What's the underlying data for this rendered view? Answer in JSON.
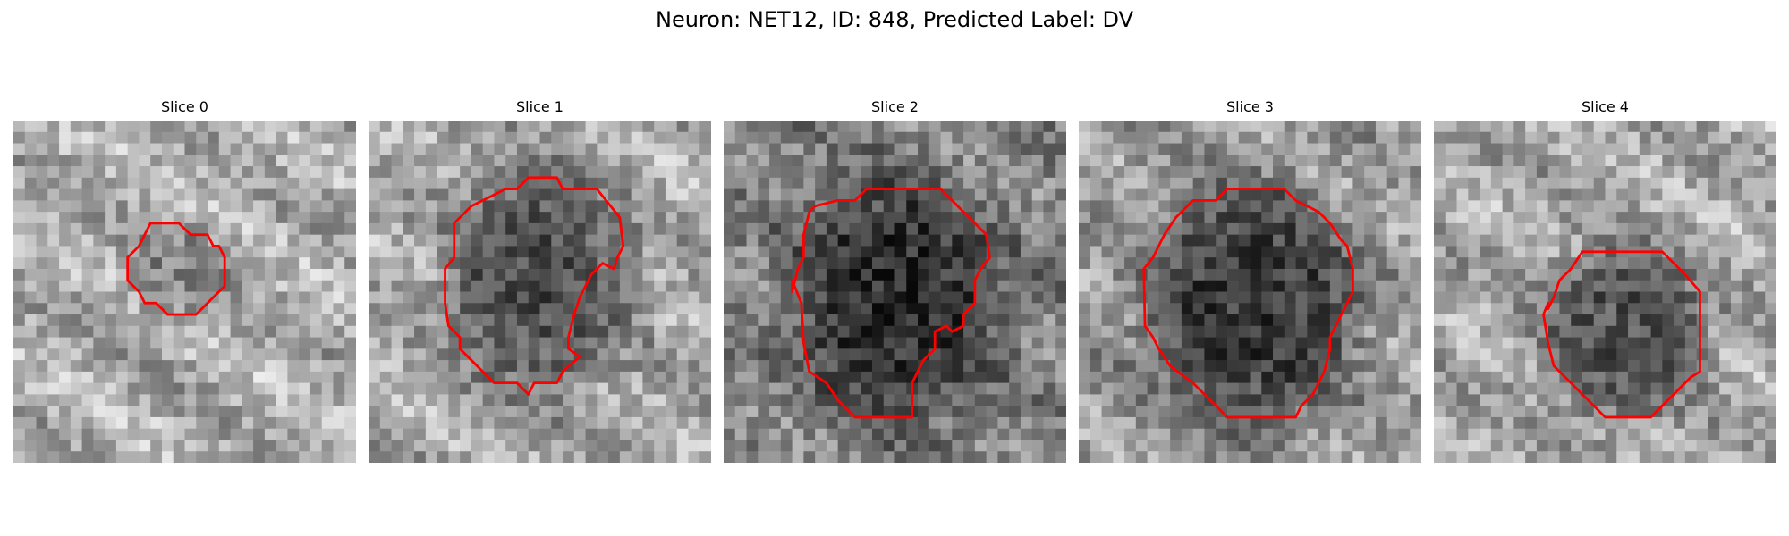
{
  "figure": {
    "title": "Neuron: NET12, ID: 848, Predicted Label: DV",
    "contour_color": "#ff0000",
    "colormap": "gray"
  },
  "panels": [
    {
      "title": "Slice 0",
      "intensity": {
        "background": 0.68,
        "cell": 0.52
      }
    },
    {
      "title": "Slice 1",
      "intensity": {
        "background": 0.66,
        "cell": 0.3
      }
    },
    {
      "title": "Slice 2",
      "intensity": {
        "background": 0.52,
        "cell": 0.17
      }
    },
    {
      "title": "Slice 3",
      "intensity": {
        "background": 0.62,
        "cell": 0.22
      }
    },
    {
      "title": "Slice 4",
      "intensity": {
        "background": 0.66,
        "cell": 0.32
      }
    }
  ]
}
